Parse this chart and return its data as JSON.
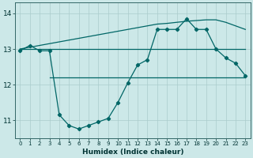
{
  "bg_color": "#cce8e8",
  "grid_color": "#aacccc",
  "line_color": "#006666",
  "xlabel": "Humidex (Indice chaleur)",
  "xlim": [
    -0.5,
    23.5
  ],
  "ylim": [
    10.5,
    14.3
  ],
  "yticks": [
    11,
    12,
    13,
    14
  ],
  "xticks": [
    0,
    1,
    2,
    3,
    4,
    5,
    6,
    7,
    8,
    9,
    10,
    11,
    12,
    13,
    14,
    15,
    16,
    17,
    18,
    19,
    20,
    21,
    22,
    23
  ],
  "line_wavy_x": [
    0,
    1,
    2,
    3,
    4,
    5,
    6,
    7,
    8,
    9,
    10,
    11,
    12,
    13,
    14,
    15,
    16,
    17,
    18,
    19,
    20,
    21,
    22,
    23
  ],
  "line_wavy_y": [
    12.95,
    13.1,
    12.95,
    12.95,
    11.15,
    10.85,
    10.75,
    10.85,
    10.95,
    11.05,
    11.5,
    12.05,
    12.55,
    12.7,
    13.55,
    13.55,
    13.55,
    13.85,
    13.55,
    13.55,
    13.0,
    12.75,
    12.6,
    12.25
  ],
  "line_flat_top_x": [
    0,
    2,
    3,
    20,
    23
  ],
  "line_flat_top_y": [
    13.0,
    13.0,
    13.0,
    13.0,
    13.0
  ],
  "line_flat_bot_x": [
    3,
    4,
    16,
    17,
    19,
    20,
    21,
    22,
    23
  ],
  "line_flat_bot_y": [
    12.2,
    12.2,
    12.2,
    12.2,
    12.2,
    12.2,
    12.2,
    12.2,
    12.2
  ],
  "line_trend_x": [
    0,
    1,
    2,
    3,
    4,
    5,
    6,
    7,
    8,
    9,
    10,
    11,
    12,
    13,
    14,
    15,
    16,
    17,
    18,
    19,
    20,
    21,
    22,
    23
  ],
  "line_trend_y": [
    13.0,
    13.05,
    13.1,
    13.15,
    13.2,
    13.25,
    13.3,
    13.35,
    13.4,
    13.45,
    13.5,
    13.55,
    13.6,
    13.65,
    13.7,
    13.72,
    13.75,
    13.78,
    13.8,
    13.82,
    13.82,
    13.75,
    13.65,
    13.55
  ]
}
